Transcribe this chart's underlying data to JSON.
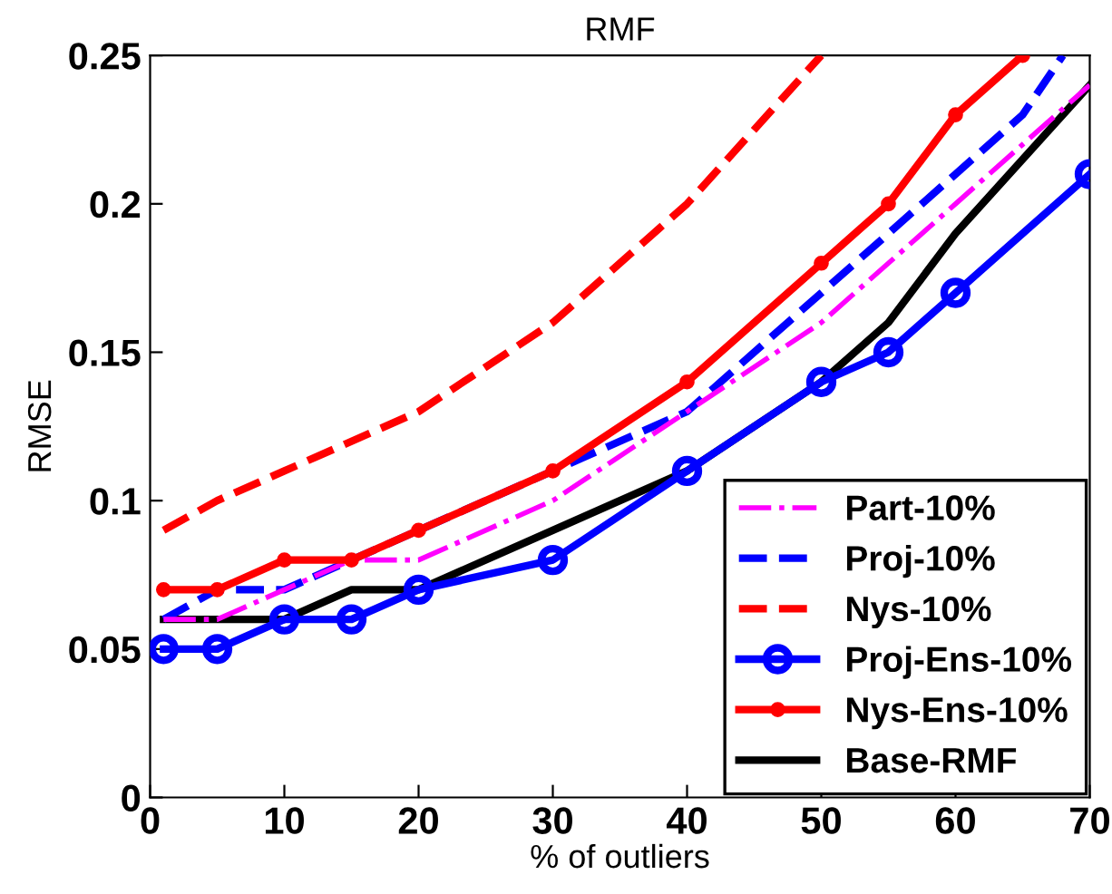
{
  "chart_data": {
    "type": "line",
    "title": "RMF",
    "xlabel": "% of outliers",
    "ylabel": "RMSE",
    "xlim": [
      0,
      70
    ],
    "xticks": [
      0,
      10,
      20,
      30,
      40,
      50,
      60,
      70
    ],
    "ylim": [
      0,
      0.25
    ],
    "yticks": [
      0,
      0.05,
      0.1,
      0.15,
      0.2,
      0.25
    ],
    "grid": false,
    "legend": "bottom right",
    "series": [
      {
        "name": "Part-10%",
        "color": "#ff00ff",
        "line_style": "dashdot",
        "marker": "none",
        "x": [
          1,
          5,
          10,
          15,
          20,
          30,
          40,
          50,
          55,
          60,
          65,
          70
        ],
        "values": [
          0.06,
          0.06,
          0.07,
          0.08,
          0.08,
          0.1,
          0.13,
          0.16,
          0.18,
          0.2,
          0.22,
          0.24
        ]
      },
      {
        "name": "Proj-10%",
        "color": "#0000ff",
        "line_style": "dashed",
        "marker": "none",
        "x": [
          1,
          5,
          10,
          15,
          20,
          30,
          40,
          50,
          55,
          60,
          65,
          68
        ],
        "values": [
          0.06,
          0.07,
          0.07,
          0.08,
          0.09,
          0.11,
          0.13,
          0.17,
          0.19,
          0.21,
          0.23,
          0.25
        ]
      },
      {
        "name": "Nys-10%",
        "color": "#ff0000",
        "line_style": "dashed",
        "marker": "none",
        "x": [
          1,
          5,
          10,
          15,
          20,
          30,
          40,
          50
        ],
        "values": [
          0.09,
          0.1,
          0.11,
          0.12,
          0.13,
          0.16,
          0.2,
          0.25
        ]
      },
      {
        "name": "Proj-Ens-10%",
        "color": "#0000ff",
        "line_style": "solid",
        "marker": "circle",
        "x": [
          1,
          5,
          10,
          15,
          20,
          30,
          40,
          50,
          55,
          60,
          70
        ],
        "values": [
          0.05,
          0.05,
          0.06,
          0.06,
          0.07,
          0.08,
          0.11,
          0.14,
          0.15,
          0.17,
          0.21
        ]
      },
      {
        "name": "Nys-Ens-10%",
        "color": "#ff0000",
        "line_style": "solid",
        "marker": "dot",
        "x": [
          1,
          5,
          10,
          15,
          20,
          30,
          40,
          50,
          55,
          60,
          65
        ],
        "values": [
          0.07,
          0.07,
          0.08,
          0.08,
          0.09,
          0.11,
          0.14,
          0.18,
          0.2,
          0.23,
          0.25
        ]
      },
      {
        "name": "Base-RMF",
        "color": "#000000",
        "line_style": "solid",
        "marker": "none",
        "x": [
          1,
          5,
          10,
          15,
          20,
          30,
          40,
          50,
          55,
          60,
          70
        ],
        "values": [
          0.06,
          0.06,
          0.06,
          0.07,
          0.07,
          0.09,
          0.11,
          0.14,
          0.16,
          0.19,
          0.24
        ]
      }
    ]
  }
}
